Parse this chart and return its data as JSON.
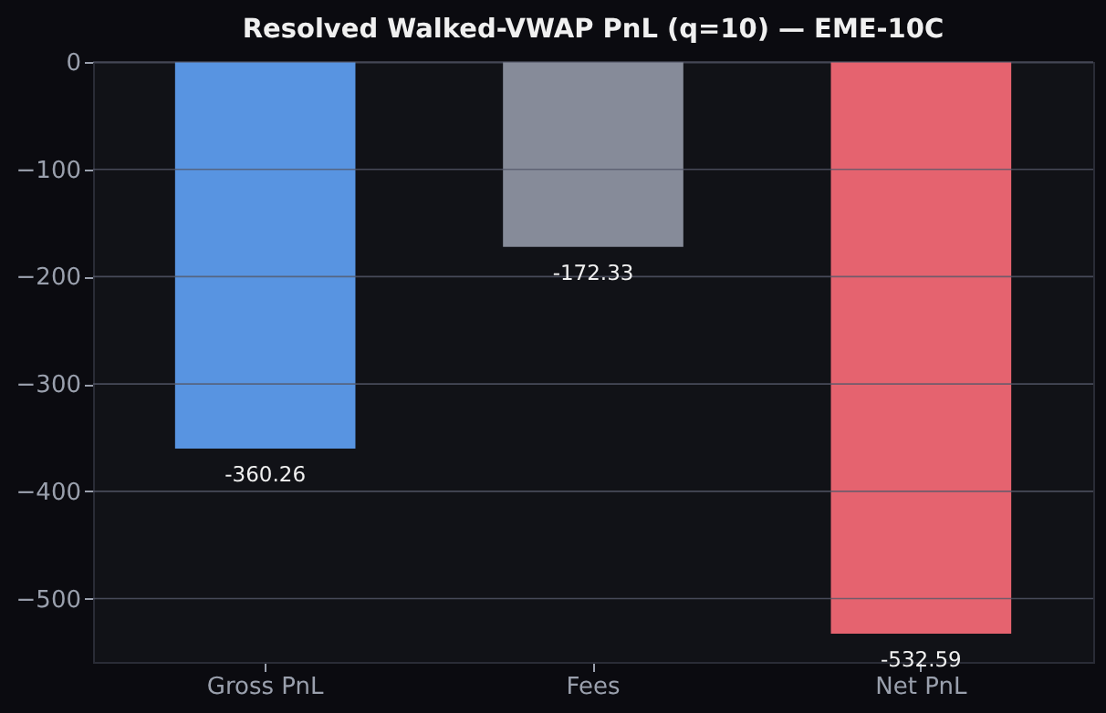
{
  "chart_data": {
    "type": "bar",
    "title": "Resolved Walked-VWAP PnL (q=10) — EME-10C",
    "categories": [
      "Gross PnL",
      "Fees",
      "Net PnL"
    ],
    "values": [
      -360.26,
      -172.33,
      -532.59
    ],
    "colors": [
      "#5894e1",
      "#868b99",
      "#e5636f"
    ],
    "ylim": [
      -559,
      0
    ],
    "yticks": [
      {
        "value": 0,
        "label": "0"
      },
      {
        "value": -100,
        "label": "−100"
      },
      {
        "value": -200,
        "label": "−200"
      },
      {
        "value": -300,
        "label": "−300"
      },
      {
        "value": -400,
        "label": "−400"
      },
      {
        "value": -500,
        "label": "−500"
      }
    ],
    "grid": "y",
    "data_labels": true
  }
}
